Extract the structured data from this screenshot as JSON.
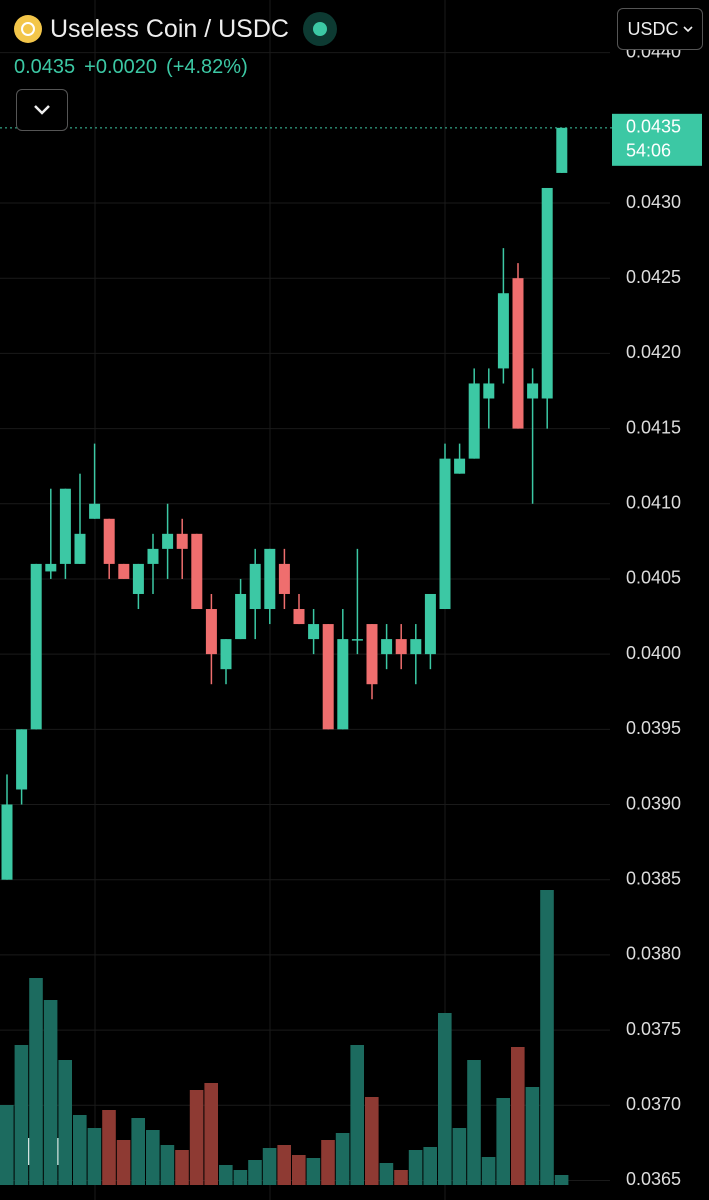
{
  "header": {
    "title": "Useless Coin / USDC",
    "price": "0.0435",
    "change": "+0.0020",
    "change_pct": "(+4.82%)",
    "quote_currency": "USDC",
    "countdown": "54:06"
  },
  "chart_data": {
    "type": "candlestick",
    "up_color": "#3cc8a4",
    "down_color": "#ef6e6e",
    "volume_up_color": "#1c6b5f",
    "volume_down_color": "#8e3a33",
    "grid": true,
    "ylim": [
      0.03637,
      0.04435
    ],
    "yticks": [
      {
        "value": 0.0365,
        "label": "0.0365"
      },
      {
        "value": 0.037,
        "label": "0.0370"
      },
      {
        "value": 0.0375,
        "label": "0.0375"
      },
      {
        "value": 0.038,
        "label": "0.0380"
      },
      {
        "value": 0.0385,
        "label": "0.0385"
      },
      {
        "value": 0.039,
        "label": "0.0390"
      },
      {
        "value": 0.0395,
        "label": "0.0395"
      },
      {
        "value": 0.04,
        "label": "0.0400"
      },
      {
        "value": 0.0405,
        "label": "0.0405"
      },
      {
        "value": 0.041,
        "label": "0.0410"
      },
      {
        "value": 0.0415,
        "label": "0.0415"
      },
      {
        "value": 0.042,
        "label": "0.0420"
      },
      {
        "value": 0.0425,
        "label": "0.0425"
      },
      {
        "value": 0.043,
        "label": "0.0430"
      },
      {
        "value": 0.044,
        "label": "0.0440"
      }
    ],
    "open": [
      0.0385,
      0.0391,
      0.0395,
      0.04055,
      0.0406,
      0.0406,
      0.0409,
      0.0409,
      0.0406,
      0.0404,
      0.0406,
      0.0407,
      0.0408,
      0.0408,
      0.0403,
      0.0399,
      0.0401,
      0.0403,
      0.0403,
      0.0406,
      0.0403,
      0.0401,
      0.0402,
      0.0395,
      0.0401,
      0.0402,
      0.04,
      0.0401,
      0.04,
      0.04,
      0.0403,
      0.0412,
      0.0413,
      0.0417,
      0.0419,
      0.0425,
      0.0417,
      0.0417,
      0.0432
    ],
    "high": [
      0.0392,
      0.0395,
      0.0406,
      0.0411,
      0.0411,
      0.0412,
      0.0414,
      0.0409,
      0.0406,
      0.0406,
      0.0408,
      0.041,
      0.0409,
      0.0408,
      0.0404,
      0.0401,
      0.0405,
      0.0407,
      0.0407,
      0.0407,
      0.0404,
      0.0403,
      0.0402,
      0.0403,
      0.0407,
      0.0402,
      0.0402,
      0.0402,
      0.0402,
      0.0404,
      0.0414,
      0.0414,
      0.0419,
      0.0419,
      0.0427,
      0.0426,
      0.0419,
      0.0431,
      0.0435
    ],
    "low": [
      0.0385,
      0.039,
      0.0395,
      0.0405,
      0.0405,
      0.0406,
      0.0409,
      0.0405,
      0.0405,
      0.0403,
      0.0404,
      0.0405,
      0.0405,
      0.0403,
      0.0398,
      0.0398,
      0.0401,
      0.0401,
      0.0402,
      0.0403,
      0.0402,
      0.04,
      0.0395,
      0.0395,
      0.04,
      0.0397,
      0.0399,
      0.0399,
      0.0398,
      0.0399,
      0.0403,
      0.0412,
      0.0413,
      0.0415,
      0.0418,
      0.0415,
      0.041,
      0.0415,
      0.0432
    ],
    "close": [
      0.039,
      0.0395,
      0.0406,
      0.0406,
      0.0411,
      0.0408,
      0.041,
      0.0406,
      0.0405,
      0.0406,
      0.0407,
      0.0408,
      0.0407,
      0.0403,
      0.04,
      0.0401,
      0.0404,
      0.0406,
      0.0407,
      0.0404,
      0.0402,
      0.0402,
      0.0395,
      0.0401,
      0.0401,
      0.0398,
      0.0401,
      0.04,
      0.0401,
      0.0404,
      0.0413,
      0.0413,
      0.0418,
      0.0418,
      0.0424,
      0.0415,
      0.0418,
      0.0431,
      0.0435
    ],
    "volume": [
      80,
      140,
      207,
      185,
      125,
      70,
      57,
      75,
      45,
      67,
      55,
      40,
      35,
      95,
      102,
      20,
      15,
      25,
      37,
      40,
      30,
      27,
      45,
      52,
      140,
      88,
      22,
      15,
      35,
      38,
      172,
      57,
      125,
      28,
      87,
      138,
      98,
      295,
      10
    ]
  }
}
